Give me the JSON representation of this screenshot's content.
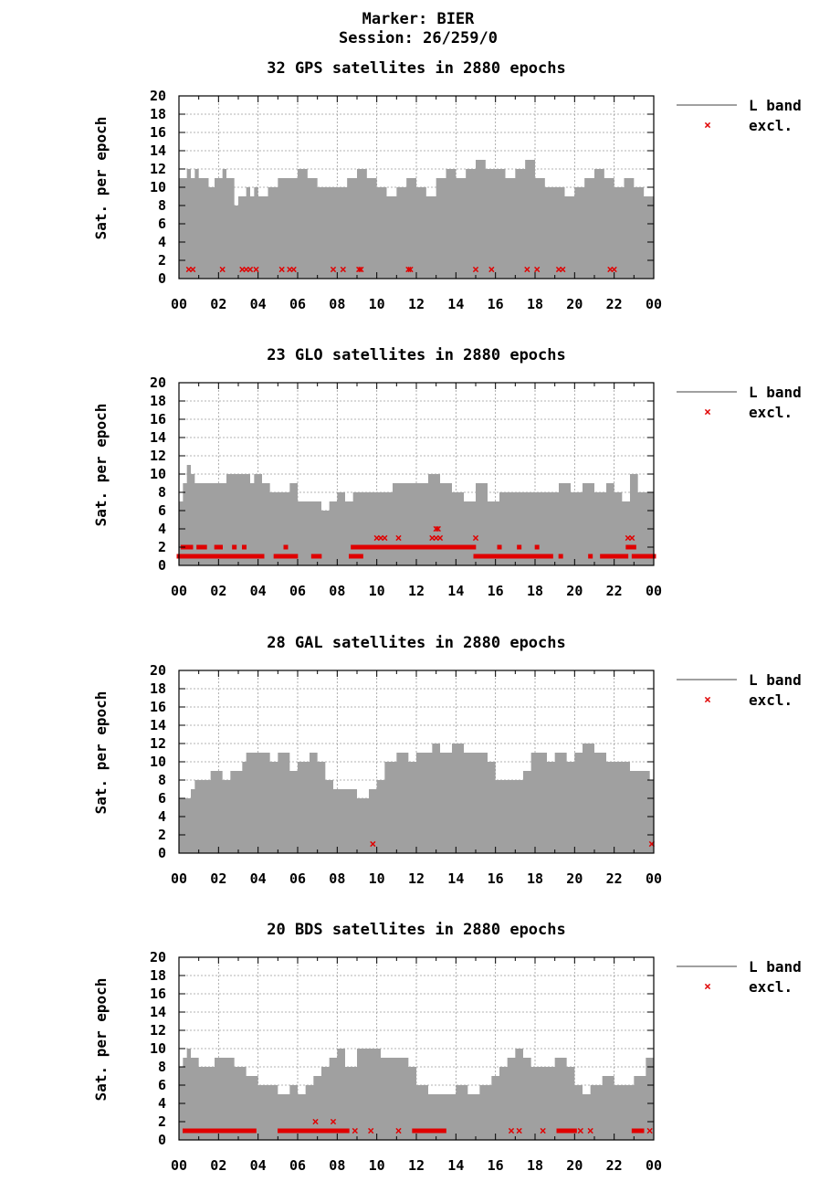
{
  "header": {
    "marker": "Marker: BIER",
    "session": "Session: 26/259/0"
  },
  "colors": {
    "l_band": "#a0a0a0",
    "excl": "#e00000",
    "grid": "#9a9a9a",
    "axis": "#000000"
  },
  "chart_data": [
    {
      "type": "area",
      "title": "32 GPS satellites in 2880 epochs",
      "xlabel": "",
      "ylabel": "Sat. per epoch",
      "xlim": [
        0,
        24
      ],
      "ylim": [
        0,
        20
      ],
      "x_ticks": [
        "00",
        "02",
        "04",
        "06",
        "08",
        "10",
        "12",
        "14",
        "16",
        "18",
        "20",
        "22",
        "00"
      ],
      "y_ticks": [
        "0",
        "2",
        "4",
        "6",
        "8",
        "10",
        "12",
        "14",
        "16",
        "18",
        "20"
      ],
      "grid": true,
      "legend_position": "right",
      "series": [
        {
          "name": "L band",
          "kind": "step-area",
          "x": [
            0,
            0.4,
            0.6,
            0.8,
            1.0,
            1.5,
            1.8,
            2.2,
            2.4,
            2.8,
            3.0,
            3.4,
            3.6,
            3.8,
            4.0,
            4.5,
            5.0,
            5.5,
            6.0,
            6.5,
            7.0,
            7.5,
            8.0,
            8.5,
            9.0,
            9.5,
            10.0,
            10.5,
            11.0,
            11.5,
            12.0,
            12.5,
            13.0,
            13.5,
            14.0,
            14.5,
            15.0,
            15.5,
            16.0,
            16.5,
            17.0,
            17.5,
            18.0,
            18.5,
            19.0,
            19.5,
            20.0,
            20.5,
            21.0,
            21.5,
            22.0,
            22.5,
            23.0,
            23.5,
            24
          ],
          "y": [
            11,
            12,
            11,
            12,
            11,
            10,
            11,
            12,
            11,
            8,
            9,
            10,
            9,
            10,
            9,
            10,
            11,
            11,
            12,
            11,
            10,
            10,
            10,
            11,
            12,
            11,
            10,
            9,
            10,
            11,
            10,
            9,
            11,
            12,
            11,
            12,
            13,
            12,
            12,
            11,
            12,
            13,
            11,
            10,
            10,
            9,
            10,
            11,
            12,
            11,
            10,
            11,
            10,
            9,
            9
          ]
        },
        {
          "name": "excl.",
          "kind": "markers",
          "points": [
            [
              0.5,
              1
            ],
            [
              0.7,
              1
            ],
            [
              2.2,
              1
            ],
            [
              3.2,
              1
            ],
            [
              3.4,
              1
            ],
            [
              3.6,
              1
            ],
            [
              3.9,
              1
            ],
            [
              5.2,
              1
            ],
            [
              5.6,
              1
            ],
            [
              5.8,
              1
            ],
            [
              7.8,
              1
            ],
            [
              8.3,
              1
            ],
            [
              9.1,
              1
            ],
            [
              9.2,
              1
            ],
            [
              11.6,
              1
            ],
            [
              11.7,
              1
            ],
            [
              15.0,
              1
            ],
            [
              15.8,
              1
            ],
            [
              17.6,
              1
            ],
            [
              18.1,
              1
            ],
            [
              19.2,
              1
            ],
            [
              19.4,
              1
            ],
            [
              21.8,
              1
            ],
            [
              22.0,
              1
            ]
          ]
        }
      ]
    },
    {
      "type": "area",
      "title": "23 GLO satellites in 2880 epochs",
      "xlabel": "",
      "ylabel": "Sat. per epoch",
      "xlim": [
        0,
        24
      ],
      "ylim": [
        0,
        20
      ],
      "x_ticks": [
        "00",
        "02",
        "04",
        "06",
        "08",
        "10",
        "12",
        "14",
        "16",
        "18",
        "20",
        "22",
        "00"
      ],
      "y_ticks": [
        "0",
        "2",
        "4",
        "6",
        "8",
        "10",
        "12",
        "14",
        "16",
        "18",
        "20"
      ],
      "grid": true,
      "legend_position": "right",
      "series": [
        {
          "name": "L band",
          "kind": "step-area",
          "x": [
            0,
            0.2,
            0.4,
            0.6,
            0.8,
            1.2,
            2.0,
            2.4,
            3.0,
            3.6,
            3.8,
            4.2,
            4.6,
            5.0,
            5.6,
            6.0,
            7.0,
            7.2,
            7.6,
            8.0,
            8.4,
            8.8,
            9.2,
            9.6,
            10.2,
            10.8,
            11.4,
            12.0,
            12.6,
            13.2,
            13.8,
            14.4,
            15.0,
            15.6,
            16.2,
            16.8,
            17.4,
            18.0,
            18.6,
            19.2,
            19.8,
            20.4,
            21.0,
            21.6,
            22.0,
            22.4,
            22.8,
            23.2,
            23.6,
            24
          ],
          "y": [
            7,
            9,
            11,
            10,
            9,
            9,
            9,
            10,
            10,
            9,
            10,
            9,
            8,
            8,
            9,
            7,
            7,
            6,
            7,
            8,
            7,
            8,
            8,
            8,
            8,
            9,
            9,
            9,
            10,
            9,
            8,
            7,
            9,
            7,
            8,
            8,
            8,
            8,
            8,
            9,
            8,
            9,
            8,
            9,
            8,
            7,
            10,
            8,
            8,
            8
          ],
          "note": ""
        },
        {
          "name": "excl.",
          "kind": "markers",
          "segments_y1": [
            [
              0.0,
              4.2
            ],
            [
              4.9,
              5.9
            ],
            [
              6.8,
              7.1
            ],
            [
              8.7,
              9.2
            ],
            [
              15.0,
              18.8
            ],
            [
              19.3,
              19.3
            ],
            [
              20.8,
              20.8
            ],
            [
              21.4,
              22.6
            ],
            [
              23.0,
              24.0
            ]
          ],
          "segments_y2": [
            [
              0.2,
              0.6
            ],
            [
              1.0,
              1.3
            ],
            [
              1.9,
              2.1
            ],
            [
              2.8,
              2.8
            ],
            [
              3.3,
              3.3
            ],
            [
              5.4,
              5.4
            ],
            [
              8.8,
              14.9
            ],
            [
              16.2,
              16.2
            ],
            [
              17.2,
              17.2
            ],
            [
              18.1,
              18.1
            ],
            [
              22.7,
              23.0
            ]
          ],
          "points": [
            [
              10.0,
              3
            ],
            [
              10.2,
              3
            ],
            [
              10.4,
              3
            ],
            [
              11.1,
              3
            ],
            [
              12.8,
              3
            ],
            [
              13.0,
              3
            ],
            [
              13.2,
              3
            ],
            [
              13.0,
              4
            ],
            [
              13.1,
              4
            ],
            [
              15.0,
              3
            ],
            [
              22.7,
              3
            ],
            [
              22.9,
              3
            ]
          ]
        }
      ]
    },
    {
      "type": "area",
      "title": "28 GAL satellites in 2880 epochs",
      "xlabel": "",
      "ylabel": "Sat. per epoch",
      "xlim": [
        0,
        24
      ],
      "ylim": [
        0,
        20
      ],
      "x_ticks": [
        "00",
        "02",
        "04",
        "06",
        "08",
        "10",
        "12",
        "14",
        "16",
        "18",
        "20",
        "22",
        "00"
      ],
      "y_ticks": [
        "0",
        "2",
        "4",
        "6",
        "8",
        "10",
        "12",
        "14",
        "16",
        "18",
        "20"
      ],
      "grid": true,
      "legend_position": "right",
      "series": [
        {
          "name": "L band",
          "kind": "step-area",
          "x": [
            0,
            0.6,
            0.8,
            1.4,
            1.6,
            2.2,
            2.6,
            3.2,
            3.4,
            4.0,
            4.6,
            5.0,
            5.6,
            6.0,
            6.6,
            7.0,
            7.4,
            7.8,
            9.0,
            9.6,
            10.0,
            10.4,
            11.0,
            11.6,
            12.0,
            12.8,
            13.2,
            13.8,
            14.4,
            15.0,
            15.6,
            16.0,
            17.0,
            17.4,
            17.8,
            18.6,
            19.0,
            19.6,
            20.0,
            20.4,
            21.0,
            21.6,
            22.0,
            22.8,
            23.4,
            23.8,
            24
          ],
          "y": [
            6,
            7,
            8,
            8,
            9,
            8,
            9,
            10,
            11,
            11,
            10,
            11,
            9,
            10,
            11,
            10,
            8,
            7,
            6,
            7,
            8,
            10,
            11,
            10,
            11,
            12,
            11,
            12,
            11,
            11,
            10,
            8,
            8,
            9,
            11,
            10,
            11,
            10,
            11,
            12,
            11,
            10,
            10,
            9,
            9,
            8,
            8
          ]
        },
        {
          "name": "excl.",
          "kind": "markers",
          "points": [
            [
              9.8,
              1
            ],
            [
              23.9,
              1
            ]
          ]
        }
      ]
    },
    {
      "type": "area",
      "title": "20 BDS satellites in 2880 epochs",
      "xlabel": "",
      "ylabel": "Sat. per epoch",
      "xlim": [
        0,
        24
      ],
      "ylim": [
        0,
        20
      ],
      "x_ticks": [
        "00",
        "02",
        "04",
        "06",
        "08",
        "10",
        "12",
        "14",
        "16",
        "18",
        "20",
        "22",
        "00"
      ],
      "y_ticks": [
        "0",
        "2",
        "4",
        "6",
        "8",
        "10",
        "12",
        "14",
        "16",
        "18",
        "20"
      ],
      "grid": true,
      "legend_position": "right",
      "series": [
        {
          "name": "L band",
          "kind": "step-area",
          "x": [
            0,
            0.2,
            0.4,
            0.6,
            1.0,
            1.4,
            1.8,
            2.4,
            2.8,
            3.4,
            4.0,
            4.6,
            5.0,
            5.6,
            6.0,
            6.4,
            6.8,
            7.2,
            7.6,
            8.0,
            8.4,
            9.0,
            9.6,
            10.2,
            10.8,
            11.6,
            12.0,
            12.6,
            13.0,
            13.6,
            14.0,
            14.6,
            15.2,
            15.8,
            16.2,
            16.6,
            17.0,
            17.4,
            17.8,
            18.4,
            19.0,
            19.6,
            20.0,
            20.4,
            20.8,
            21.4,
            22.0,
            22.6,
            23.0,
            23.6,
            24
          ],
          "y": [
            8,
            9,
            10,
            9,
            8,
            8,
            9,
            9,
            8,
            7,
            6,
            6,
            5,
            6,
            5,
            6,
            7,
            8,
            9,
            10,
            8,
            10,
            10,
            9,
            9,
            8,
            6,
            5,
            5,
            5,
            6,
            5,
            6,
            7,
            8,
            9,
            10,
            9,
            8,
            8,
            9,
            8,
            6,
            5,
            6,
            7,
            6,
            6,
            7,
            9,
            7
          ]
        },
        {
          "name": "excl.",
          "kind": "markers",
          "segments_y1": [
            [
              0.3,
              3.8
            ],
            [
              5.1,
              8.5
            ],
            [
              11.9,
              13.4
            ],
            [
              19.2,
              20.0
            ],
            [
              23.0,
              23.4
            ]
          ],
          "points": [
            [
              6.9,
              2
            ],
            [
              7.8,
              2
            ],
            [
              8.9,
              1
            ],
            [
              9.7,
              1
            ],
            [
              11.1,
              1
            ],
            [
              16.8,
              1
            ],
            [
              17.2,
              1
            ],
            [
              18.4,
              1
            ],
            [
              20.3,
              1
            ],
            [
              20.8,
              1
            ],
            [
              23.8,
              1
            ]
          ]
        }
      ]
    }
  ],
  "legend": {
    "l_band": "L band",
    "excl": "excl."
  }
}
